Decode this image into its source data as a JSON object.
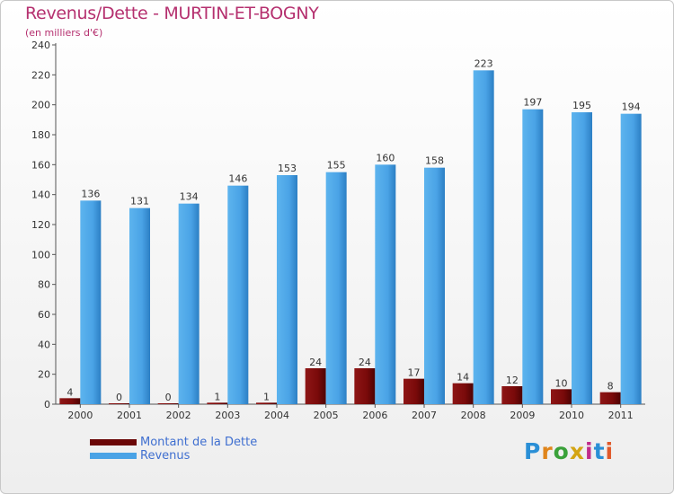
{
  "header": {
    "title": "Revenus/Dette - MURTIN-ET-BOGNY",
    "subtitle": "(en milliers d'€)"
  },
  "colors": {
    "debt": "#7a0a0a",
    "revenue": "#4aa3e6",
    "title": "#b5306f",
    "legend_text": "#3f6fd0"
  },
  "legend": {
    "debt_label": "Montant de la Dette",
    "revenue_label": "Revenus"
  },
  "logo": {
    "text": "Proxiti"
  },
  "chart_data": {
    "type": "bar",
    "title": "Revenus/Dette - MURTIN-ET-BOGNY",
    "ylabel": "(en milliers d'€)",
    "xlabel": "",
    "ylim": [
      0,
      240
    ],
    "yticks": [
      0,
      20,
      40,
      60,
      80,
      100,
      120,
      140,
      160,
      180,
      200,
      220,
      240
    ],
    "grid": false,
    "legend_position": "bottom-left",
    "categories": [
      "2000",
      "2001",
      "2002",
      "2003",
      "2004",
      "2005",
      "2006",
      "2007",
      "2008",
      "2009",
      "2010",
      "2011"
    ],
    "series": [
      {
        "name": "Montant de la Dette",
        "values": [
          4,
          0,
          0,
          1,
          1,
          24,
          24,
          17,
          14,
          12,
          10,
          8
        ]
      },
      {
        "name": "Revenus",
        "values": [
          136,
          131,
          134,
          146,
          153,
          155,
          160,
          158,
          223,
          197,
          195,
          194
        ]
      }
    ]
  }
}
